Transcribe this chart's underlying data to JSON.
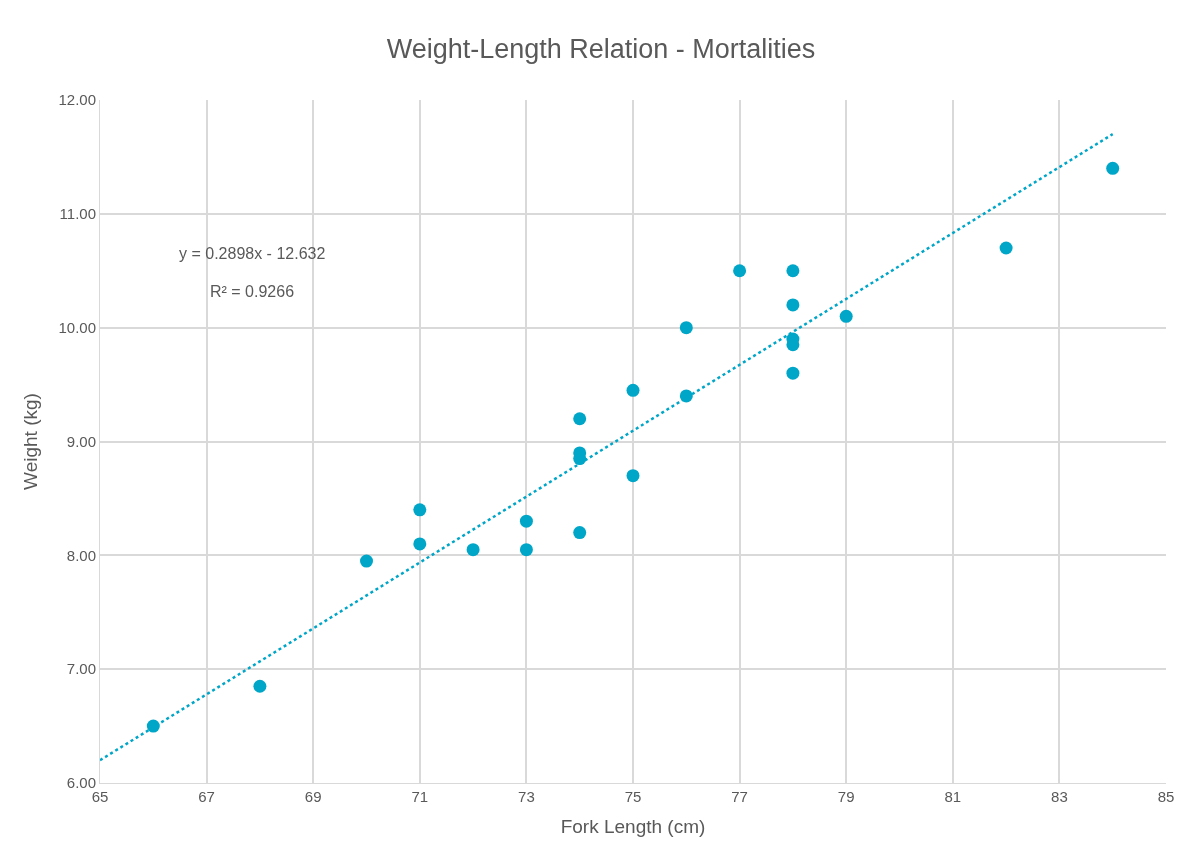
{
  "chart_data": {
    "type": "scatter",
    "title": "Weight-Length Relation - Mortalities",
    "xlabel": "Fork Length (cm)",
    "ylabel": "Weight (kg)",
    "annotations": [
      "y = 0.2898x - 12.632",
      "R² = 0.9266"
    ],
    "series": [
      {
        "color": "#00a6c8",
        "marker": "circle",
        "x": [
          66,
          68,
          70,
          71,
          71,
          72,
          73,
          73,
          74,
          74,
          74,
          74,
          75,
          75,
          76,
          76,
          77,
          78,
          78,
          78,
          78,
          78,
          79,
          82,
          84
        ],
        "values": [
          6.5,
          6.85,
          7.95,
          8.4,
          8.1,
          8.05,
          8.3,
          8.05,
          8.2,
          8.85,
          8.9,
          9.2,
          8.7,
          9.45,
          9.4,
          10.0,
          10.5,
          10.5,
          10.2,
          9.9,
          9.85,
          9.6,
          10.1,
          10.7,
          11.4
        ]
      },
      {
        "type": "line",
        "color": "#00a6c8",
        "marker": "none",
        "line_style": "dotted",
        "x": [
          65,
          84
        ],
        "values": [
          6.2,
          11.7
        ]
      }
    ],
    "xlim": [
      65,
      85
    ],
    "xticks": [
      65,
      67,
      69,
      71,
      73,
      75,
      77,
      79,
      81,
      83,
      85
    ],
    "ylim": [
      6,
      12
    ],
    "yticks": [
      {
        "value": 6,
        "label": "6.00"
      },
      {
        "value": 7,
        "label": "7.00"
      },
      {
        "value": 8,
        "label": "8.00"
      },
      {
        "value": 9,
        "label": "9.00"
      },
      {
        "value": 10,
        "label": "10.00"
      },
      {
        "value": 11,
        "label": "11.00"
      },
      {
        "value": 12,
        "label": "12.00"
      }
    ],
    "grid": true
  }
}
